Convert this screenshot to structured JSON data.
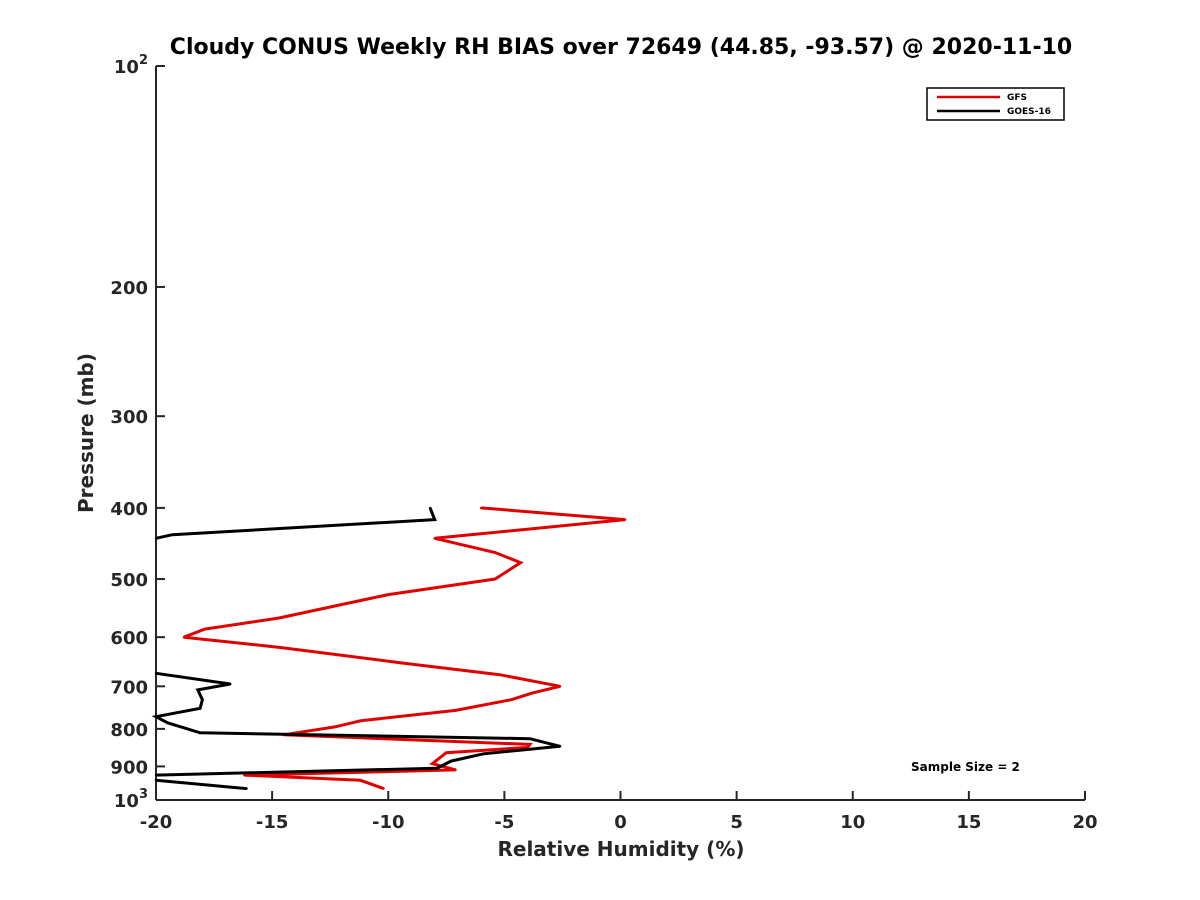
{
  "chart_data": {
    "type": "line",
    "title": "Cloudy CONUS Weekly RH BIAS over 72649 (44.85, -93.57) @ 2020-11-10",
    "xlabel": "Relative Humidity (%)",
    "ylabel": "Pressure (mb)",
    "xlim": [
      -20,
      20
    ],
    "ylim": [
      100,
      1000
    ],
    "y_scale": "log",
    "y_reversed": true,
    "grid": false,
    "legend_position": "top-right",
    "x_ticks": [
      {
        "value": -20,
        "label": "-20"
      },
      {
        "value": -15,
        "label": "-15"
      },
      {
        "value": -10,
        "label": "-10"
      },
      {
        "value": -5,
        "label": "-5"
      },
      {
        "value": 0,
        "label": "0"
      },
      {
        "value": 5,
        "label": "5"
      },
      {
        "value": 10,
        "label": "10"
      },
      {
        "value": 15,
        "label": "15"
      },
      {
        "value": 20,
        "label": "20"
      }
    ],
    "y_ticks": [
      {
        "value": 100,
        "base": "10",
        "exp": "2"
      },
      {
        "value": 200,
        "label": "200"
      },
      {
        "value": 300,
        "label": "300"
      },
      {
        "value": 400,
        "label": "400"
      },
      {
        "value": 500,
        "label": "500"
      },
      {
        "value": 600,
        "label": "600"
      },
      {
        "value": 700,
        "label": "700"
      },
      {
        "value": 800,
        "label": "800"
      },
      {
        "value": 900,
        "label": "900"
      },
      {
        "value": 1000,
        "base": "10",
        "exp": "3"
      }
    ],
    "series": [
      {
        "name": "GFS",
        "color": "#e00000",
        "points": [
          {
            "x": -6.0,
            "y": 400
          },
          {
            "x": 0.2,
            "y": 415
          },
          {
            "x": -8.0,
            "y": 440
          },
          {
            "x": -5.4,
            "y": 460
          },
          {
            "x": -4.3,
            "y": 475
          },
          {
            "x": -5.4,
            "y": 500
          },
          {
            "x": -10.0,
            "y": 525
          },
          {
            "x": -12.4,
            "y": 545
          },
          {
            "x": -14.7,
            "y": 565
          },
          {
            "x": -17.9,
            "y": 585
          },
          {
            "x": -18.8,
            "y": 600
          },
          {
            "x": -14.6,
            "y": 620
          },
          {
            "x": -9.5,
            "y": 650
          },
          {
            "x": -5.2,
            "y": 675
          },
          {
            "x": -2.6,
            "y": 700
          },
          {
            "x": -3.8,
            "y": 715
          },
          {
            "x": -4.7,
            "y": 730
          },
          {
            "x": -7.1,
            "y": 755
          },
          {
            "x": -11.2,
            "y": 780
          },
          {
            "x": -12.3,
            "y": 795
          },
          {
            "x": -14.5,
            "y": 815
          },
          {
            "x": -3.9,
            "y": 840
          },
          {
            "x": -4.0,
            "y": 848
          },
          {
            "x": -7.5,
            "y": 862
          },
          {
            "x": -8.1,
            "y": 892
          },
          {
            "x": -7.1,
            "y": 910
          },
          {
            "x": -16.2,
            "y": 925
          },
          {
            "x": -11.2,
            "y": 940
          },
          {
            "x": -10.2,
            "y": 965
          }
        ]
      },
      {
        "name": "GOES-16",
        "color": "#000000",
        "points": [
          {
            "x": -8.2,
            "y": 400
          },
          {
            "x": -8.0,
            "y": 415
          },
          {
            "x": -19.3,
            "y": 435
          },
          {
            "x": -20.0,
            "y": 440
          }
        ]
      },
      {
        "name": "GOES-16",
        "color": "#000000",
        "points": [
          {
            "x": -20.0,
            "y": 672
          },
          {
            "x": -16.8,
            "y": 695
          },
          {
            "x": -18.2,
            "y": 708
          },
          {
            "x": -18.0,
            "y": 730
          },
          {
            "x": -18.1,
            "y": 750
          },
          {
            "x": -20.0,
            "y": 770
          },
          {
            "x": -19.5,
            "y": 785
          },
          {
            "x": -18.1,
            "y": 810
          },
          {
            "x": -3.9,
            "y": 825
          },
          {
            "x": -2.6,
            "y": 845
          },
          {
            "x": -5.9,
            "y": 865
          },
          {
            "x": -7.3,
            "y": 885
          },
          {
            "x": -7.9,
            "y": 905
          },
          {
            "x": -20.0,
            "y": 925
          }
        ]
      },
      {
        "name": "GOES-16",
        "color": "#000000",
        "points": [
          {
            "x": -20.0,
            "y": 940
          },
          {
            "x": -16.1,
            "y": 965
          }
        ]
      }
    ],
    "legend": [
      {
        "label": "GFS",
        "color": "#e00000"
      },
      {
        "label": "GOES-16",
        "color": "#000000"
      }
    ],
    "annotation": "Sample Size = 2"
  }
}
